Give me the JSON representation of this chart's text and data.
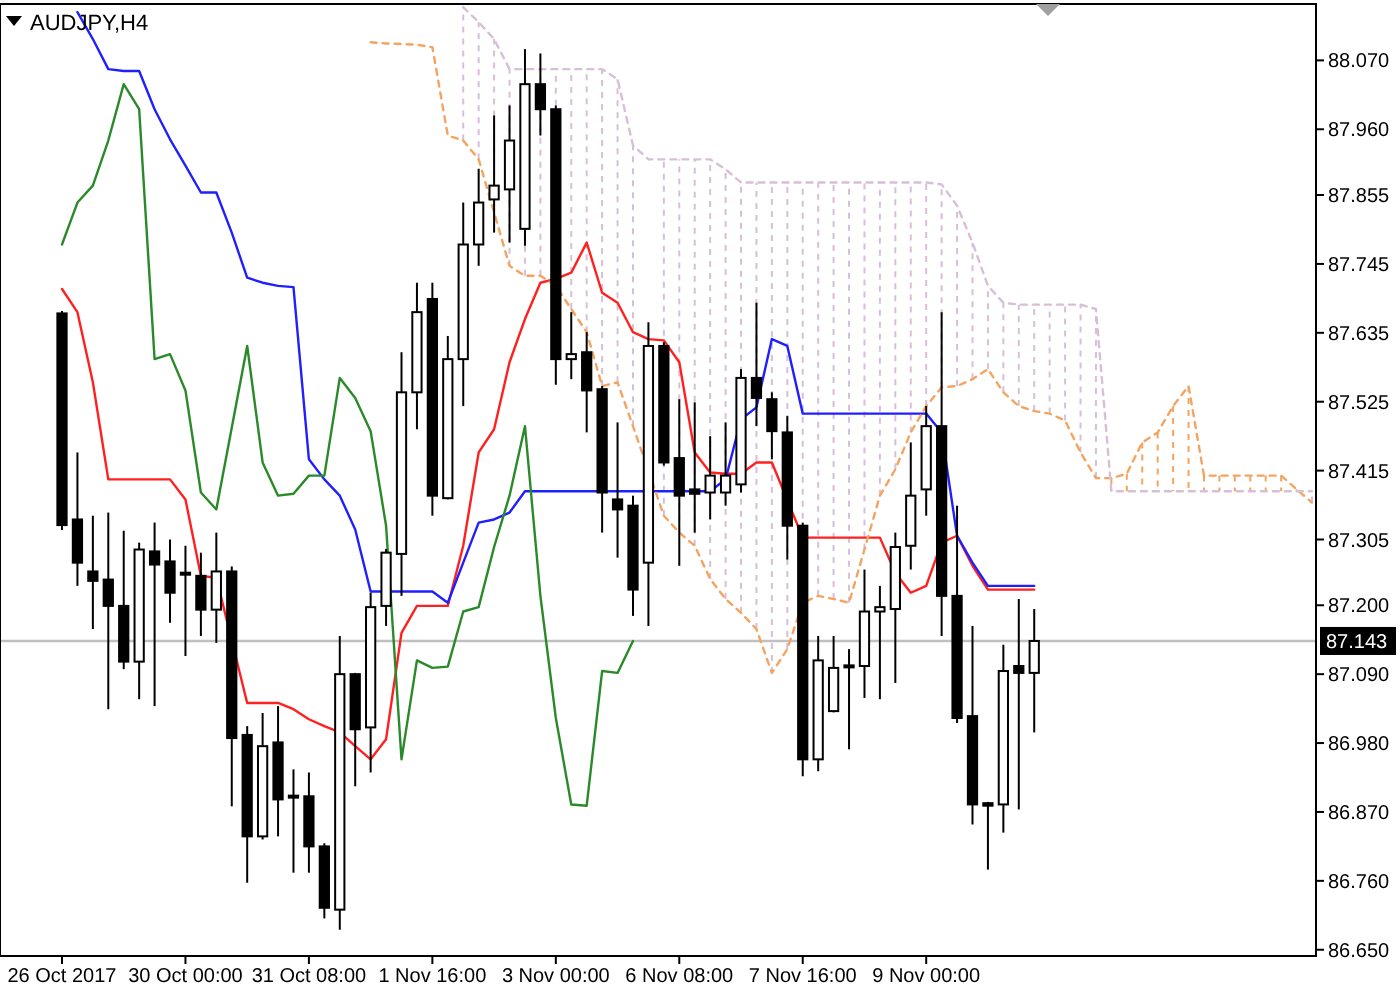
{
  "chart_data": {
    "type": "candlestick",
    "title": "AUDJPY,H4",
    "categories": [
      "26 Oct 2017",
      null,
      null,
      null,
      null,
      null,
      null,
      null,
      "30 Oct 00:00",
      null,
      null,
      null,
      null,
      null,
      null,
      null,
      "31 Oct 08:00",
      null,
      null,
      null,
      null,
      null,
      null,
      null,
      "1 Nov 16:00",
      null,
      null,
      null,
      null,
      null,
      null,
      null,
      "3 Nov 00:00",
      null,
      null,
      null,
      null,
      null,
      null,
      null,
      "6 Nov 08:00",
      null,
      null,
      null,
      null,
      null,
      null,
      null,
      "7 Nov 16:00",
      null,
      null,
      null,
      null,
      null,
      null,
      null,
      "9 Nov 00:00",
      null,
      null,
      null,
      null,
      null,
      null,
      null,
      null,
      null,
      null,
      null,
      null,
      null,
      null,
      null,
      null,
      null,
      null,
      null,
      null,
      null,
      null,
      null,
      null,
      null
    ],
    "ohlc": [
      [
        87.666,
        87.67,
        87.32,
        87.328
      ],
      [
        87.337,
        87.444,
        87.231,
        87.268
      ],
      [
        87.254,
        87.343,
        87.162,
        87.239
      ],
      [
        87.241,
        87.348,
        87.034,
        87.199
      ],
      [
        87.199,
        87.319,
        87.098,
        87.11
      ],
      [
        87.11,
        87.3,
        87.05,
        87.289
      ],
      [
        87.286,
        87.332,
        87.039,
        87.265
      ],
      [
        87.27,
        87.305,
        87.172,
        87.22
      ],
      [
        87.252,
        87.295,
        87.119,
        87.25
      ],
      [
        87.247,
        87.284,
        87.151,
        87.193
      ],
      [
        87.193,
        87.316,
        87.14,
        87.254
      ],
      [
        87.254,
        87.262,
        86.879,
        86.988
      ],
      [
        86.993,
        87.007,
        86.757,
        86.831
      ],
      [
        86.831,
        87.028,
        86.826,
        86.975
      ],
      [
        86.981,
        87.039,
        86.831,
        86.89
      ],
      [
        86.896,
        86.938,
        86.773,
        86.894
      ],
      [
        86.895,
        86.933,
        86.773,
        86.815
      ],
      [
        86.815,
        86.82,
        86.7,
        86.717
      ],
      [
        86.714,
        87.151,
        86.682,
        87.09
      ],
      [
        87.09,
        87.092,
        86.911,
        87.002
      ],
      [
        87.005,
        87.22,
        86.933,
        87.197
      ],
      [
        87.199,
        87.29,
        87.167,
        87.284
      ],
      [
        87.282,
        87.604,
        87.215,
        87.54
      ],
      [
        87.54,
        87.715,
        87.481,
        87.668
      ],
      [
        87.689,
        87.715,
        87.343,
        87.375
      ],
      [
        87.371,
        87.63,
        87.369,
        87.593
      ],
      [
        87.593,
        87.843,
        87.518,
        87.776
      ],
      [
        87.776,
        87.897,
        87.742,
        87.843
      ],
      [
        87.848,
        87.982,
        87.795,
        87.87
      ],
      [
        87.864,
        87.998,
        87.779,
        87.942
      ],
      [
        87.801,
        88.088,
        87.774,
        88.032
      ],
      [
        88.032,
        88.081,
        87.95,
        87.992
      ],
      [
        87.992,
        87.998,
        87.552,
        87.593
      ],
      [
        87.593,
        87.668,
        87.561,
        87.601
      ],
      [
        87.604,
        87.636,
        87.476,
        87.543
      ],
      [
        87.545,
        87.55,
        87.316,
        87.38
      ],
      [
        87.369,
        87.492,
        87.276,
        87.353
      ],
      [
        87.359,
        87.375,
        87.183,
        87.225
      ],
      [
        87.268,
        87.652,
        87.167,
        87.614
      ],
      [
        87.614,
        87.62,
        87.423,
        87.428
      ],
      [
        87.435,
        87.529,
        87.263,
        87.375
      ],
      [
        87.385,
        87.524,
        87.316,
        87.378
      ],
      [
        87.38,
        87.47,
        87.337,
        87.407
      ],
      [
        87.38,
        87.492,
        87.359,
        87.407
      ],
      [
        87.393,
        87.577,
        87.38,
        87.563
      ],
      [
        87.563,
        87.683,
        87.486,
        87.531
      ],
      [
        87.529,
        87.54,
        87.433,
        87.478
      ],
      [
        87.476,
        87.502,
        87.273,
        87.327
      ],
      [
        87.327,
        87.332,
        86.927,
        86.954
      ],
      [
        86.954,
        87.151,
        86.935,
        87.112
      ],
      [
        87.031,
        87.151,
        87.029,
        87.1
      ],
      [
        87.104,
        87.13,
        86.97,
        87.102
      ],
      [
        87.103,
        87.257,
        87.052,
        87.19
      ],
      [
        87.19,
        87.231,
        87.05,
        87.197
      ],
      [
        87.194,
        87.316,
        87.076,
        87.293
      ],
      [
        87.295,
        87.46,
        87.257,
        87.375
      ],
      [
        87.385,
        87.518,
        87.343,
        87.486
      ],
      [
        87.486,
        87.668,
        87.151,
        87.215
      ],
      [
        87.215,
        87.359,
        87.012,
        87.02
      ],
      [
        87.023,
        87.167,
        86.85,
        86.882
      ],
      [
        86.884,
        86.886,
        86.778,
        86.88
      ],
      [
        86.882,
        87.137,
        86.837,
        87.095
      ],
      [
        87.103,
        87.21,
        86.874,
        87.092
      ],
      [
        87.092,
        87.194,
        86.997,
        87.143
      ],
      null,
      null,
      null,
      null,
      null,
      null,
      null,
      null,
      null,
      null,
      null,
      null,
      null,
      null,
      null,
      null,
      null,
      null
    ],
    "series": [
      {
        "type": "line",
        "color": "#ff2020",
        "line_style": "solid",
        "values": [
          87.705,
          87.668,
          87.556,
          87.401,
          87.401,
          87.401,
          87.401,
          87.401,
          87.369,
          87.247,
          87.244,
          null,
          87.044,
          87.044,
          87.044,
          87.034,
          87.018,
          87.007,
          86.997,
          86.975,
          86.954,
          86.986,
          87.156,
          87.199,
          87.199,
          87.199,
          87.295,
          87.444,
          87.481,
          87.588,
          87.657,
          87.715,
          87.721,
          87.731,
          87.779,
          87.699,
          87.683,
          87.636,
          87.625,
          87.623,
          87.588,
          87.444,
          87.412,
          87.41,
          87.41,
          87.428,
          87.428,
          null,
          87.308,
          87.308,
          87.308,
          87.308,
          87.308,
          87.308,
          87.252,
          87.22,
          87.231,
          87.3,
          87.311,
          87.263,
          87.225,
          87.225,
          87.225,
          87.225,
          null,
          null,
          null,
          null,
          null,
          null,
          null,
          null,
          null,
          null,
          null,
          null,
          null,
          null,
          null,
          null,
          null,
          null
        ]
      },
      {
        "type": "line",
        "color": "#2020ff",
        "line_style": "solid",
        "values": [
          null,
          88.147,
          88.104,
          88.056,
          88.053,
          88.053,
          87.992,
          87.944,
          87.902,
          87.859,
          87.859,
          87.795,
          87.723,
          87.715,
          87.71,
          87.708,
          87.433,
          87.401,
          87.375,
          87.321,
          87.222,
          87.222,
          87.222,
          87.222,
          87.222,
          87.204,
          87.268,
          87.332,
          87.337,
          87.348,
          87.382,
          87.382,
          87.382,
          87.382,
          87.382,
          87.382,
          87.382,
          87.382,
          87.382,
          87.382,
          87.382,
          87.382,
          87.382,
          87.401,
          87.497,
          87.516,
          87.625,
          87.614,
          87.506,
          87.506,
          87.506,
          87.506,
          87.506,
          87.506,
          87.506,
          87.506,
          87.506,
          87.476,
          87.311,
          87.268,
          87.231,
          87.231,
          87.231,
          87.231,
          null,
          null,
          null,
          null,
          null,
          null,
          null,
          null,
          null,
          null,
          null,
          null,
          null,
          null,
          null,
          null,
          null,
          null
        ]
      },
      {
        "type": "line",
        "color": "#2a8a2a",
        "line_style": "solid",
        "values": [
          87.776,
          87.843,
          87.87,
          87.942,
          88.032,
          87.992,
          87.593,
          87.601,
          87.543,
          87.38,
          87.353,
          null,
          87.614,
          87.428,
          87.375,
          87.378,
          87.407,
          87.407,
          87.563,
          87.531,
          87.478,
          87.327,
          86.954,
          87.112,
          87.1,
          87.102,
          87.19,
          87.197,
          87.293,
          87.375,
          87.486,
          87.215,
          87.02,
          86.882,
          86.88,
          87.095,
          87.092,
          87.143,
          null,
          null,
          null,
          null,
          null,
          null,
          null,
          null,
          null,
          null,
          null,
          null,
          null,
          null,
          null,
          null,
          null,
          null,
          null,
          null,
          null,
          null,
          null,
          null,
          null,
          null,
          null,
          null,
          null,
          null,
          null,
          null,
          null,
          null,
          null,
          null,
          null,
          null,
          null,
          null,
          null,
          null,
          null,
          null
        ]
      },
      {
        "type": "line",
        "color": "#f4a460",
        "line_style": "dashed",
        "values": [
          null,
          null,
          null,
          null,
          null,
          null,
          null,
          null,
          null,
          null,
          null,
          null,
          null,
          null,
          null,
          null,
          null,
          null,
          null,
          null,
          88.099,
          88.097,
          88.096,
          88.095,
          88.091,
          87.95,
          87.942,
          87.912,
          87.827,
          87.742,
          87.726,
          87.726,
          87.71,
          87.673,
          87.636,
          87.55,
          87.556,
          87.486,
          null,
          87.343,
          87.316,
          87.295,
          87.242,
          87.21,
          87.188,
          87.162,
          87.092,
          87.13,
          87.204,
          87.215,
          87.21,
          87.204,
          87.289,
          87.375,
          87.417,
          87.476,
          87.518,
          87.548,
          87.55,
          87.561,
          87.577,
          87.54,
          87.518,
          87.51,
          87.506,
          87.495,
          87.444,
          87.403,
          87.403,
          87.41,
          87.46,
          87.476,
          87.518,
          87.55,
          87.407,
          87.407,
          87.407,
          87.407,
          87.407,
          87.407,
          87.385,
          87.364
        ]
      },
      {
        "type": "line",
        "color": "#d8bfd8",
        "line_style": "dashed",
        "values": [
          null,
          null,
          null,
          null,
          null,
          null,
          null,
          null,
          null,
          null,
          null,
          null,
          null,
          null,
          null,
          null,
          null,
          null,
          null,
          null,
          null,
          null,
          null,
          null,
          null,
          null,
          88.155,
          88.131,
          88.104,
          88.056,
          88.056,
          88.056,
          88.056,
          88.056,
          88.056,
          88.056,
          88.04,
          87.934,
          87.912,
          87.912,
          87.912,
          87.912,
          87.912,
          87.896,
          87.875,
          87.875,
          87.875,
          87.875,
          87.875,
          87.875,
          87.875,
          87.875,
          87.875,
          87.875,
          87.875,
          87.875,
          87.875,
          87.872,
          87.838,
          87.779,
          87.71,
          87.683,
          87.68,
          87.68,
          87.68,
          87.68,
          87.68,
          87.673,
          87.382,
          87.382,
          87.382,
          87.382,
          87.382,
          87.382,
          87.382,
          87.382,
          87.382,
          87.382,
          87.382,
          87.382,
          87.382,
          87.382
        ]
      }
    ],
    "ylim": [
      86.64,
      88.16
    ],
    "yticks": [
      {
        "value": 86.65,
        "label": "86.650"
      },
      {
        "value": 86.76,
        "label": "86.760"
      },
      {
        "value": 86.87,
        "label": "86.870"
      },
      {
        "value": 86.98,
        "label": "86.980"
      },
      {
        "value": 87.09,
        "label": "87.090"
      },
      {
        "value": 87.2,
        "label": "87.200"
      },
      {
        "value": 87.305,
        "label": "87.305"
      },
      {
        "value": 87.415,
        "label": "87.415"
      },
      {
        "value": 87.525,
        "label": "87.525"
      },
      {
        "value": 87.635,
        "label": "87.635"
      },
      {
        "value": 87.745,
        "label": "87.745"
      },
      {
        "value": 87.855,
        "label": "87.855"
      },
      {
        "value": 87.96,
        "label": "87.960"
      },
      {
        "value": 88.07,
        "label": "88.070"
      }
    ],
    "ref_lines": [
      {
        "axis": "y",
        "value": 87.143,
        "label": "87.143",
        "color": "#c0c0c0"
      }
    ],
    "grid": false
  }
}
